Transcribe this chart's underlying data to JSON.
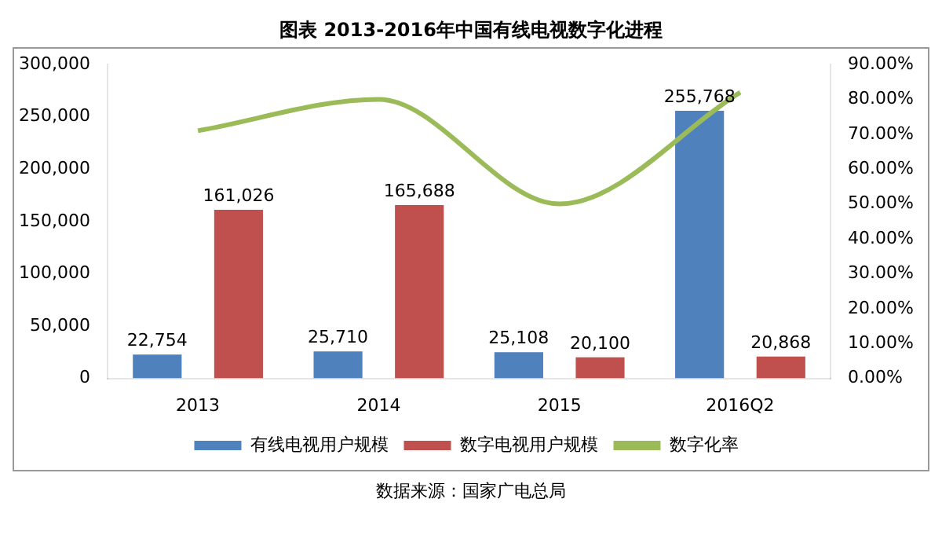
{
  "chart_data": {
    "type": "bar",
    "title": "图表    2013-2016年中国有线电视数字化进程",
    "categories": [
      "2013",
      "2014",
      "2015",
      "2016Q2"
    ],
    "series": [
      {
        "name": "有线电视用户规模",
        "color": "#4f81bd",
        "values": [
          22754,
          25710,
          25108,
          255768
        ],
        "value_labels": [
          "22,754",
          "25,710",
          "25,108",
          "255,768"
        ]
      },
      {
        "name": "数字电视用户规模",
        "color": "#c0504d",
        "values": [
          161026,
          165688,
          20100,
          20868
        ],
        "value_labels": [
          "161,026",
          "165,688",
          "20,100",
          "20,868"
        ]
      },
      {
        "name": "数字化率",
        "type": "line",
        "axis": "y2",
        "color": "#9bbb59",
        "values": [
          71,
          80,
          50,
          82
        ]
      }
    ],
    "ylim": [
      0,
      300000
    ],
    "yticks": [
      {
        "value": 0,
        "label": "0"
      },
      {
        "value": 50000,
        "label": "50,000"
      },
      {
        "value": 100000,
        "label": "100,000"
      },
      {
        "value": 150000,
        "label": "150,000"
      },
      {
        "value": 200000,
        "label": "200,000"
      },
      {
        "value": 250000,
        "label": "250,000"
      },
      {
        "value": 300000,
        "label": "300,000"
      }
    ],
    "y2lim": [
      0,
      90
    ],
    "y2ticks": [
      {
        "value": 0,
        "label": "0.00%"
      },
      {
        "value": 10,
        "label": "10.00%"
      },
      {
        "value": 20,
        "label": "20.00%"
      },
      {
        "value": 30,
        "label": "30.00%"
      },
      {
        "value": 40,
        "label": "40.00%"
      },
      {
        "value": 50,
        "label": "50.00%"
      },
      {
        "value": 60,
        "label": "60.00%"
      },
      {
        "value": 70,
        "label": "70.00%"
      },
      {
        "value": 80,
        "label": "80.00%"
      },
      {
        "value": 90,
        "label": "90.00%"
      }
    ],
    "legend": "bottom",
    "marker": "none",
    "grid": false,
    "annotations": [
      "数据来源：国家广电总局"
    ]
  }
}
